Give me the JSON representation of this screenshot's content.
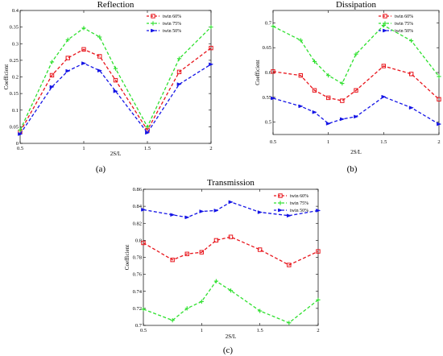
{
  "colors": {
    "red": "#e8141b",
    "green": "#2fe02f",
    "blue": "#1414e6"
  },
  "chart_data": [
    {
      "id": "a",
      "type": "line",
      "title": "Reflection",
      "panel_label": "(a)",
      "xlabel": "2S/L",
      "ylabel": "Coefficient",
      "xlim": [
        0.5,
        2
      ],
      "ylim": [
        0,
        0.4
      ],
      "xticks": [
        "0.5",
        "1",
        "1.5",
        "2"
      ],
      "yticks": [
        "0",
        "0.05",
        "0.1",
        "0.15",
        "0.2",
        "0.25",
        "0.3",
        "0.35",
        "0.4"
      ],
      "legend_position": "top-right",
      "x": [
        0.5,
        0.75,
        0.875,
        1.0,
        1.125,
        1.25,
        1.5,
        1.75,
        2.0
      ],
      "series": [
        {
          "name": "twin 60%",
          "marker": "square",
          "values": [
            0.035,
            0.205,
            0.257,
            0.283,
            0.262,
            0.19,
            0.04,
            0.215,
            0.287
          ]
        },
        {
          "name": "twin 75%",
          "marker": "plus",
          "values": [
            0.04,
            0.245,
            0.312,
            0.347,
            0.32,
            0.225,
            0.05,
            0.255,
            0.35
          ]
        },
        {
          "name": "twin 50%",
          "marker": "triangle",
          "values": [
            0.028,
            0.17,
            0.218,
            0.241,
            0.219,
            0.157,
            0.032,
            0.178,
            0.238
          ]
        }
      ]
    },
    {
      "id": "b",
      "type": "line",
      "title": "Dissipation",
      "panel_label": "(b)",
      "xlabel": "2S/L",
      "ylabel": "Coefficient",
      "xlim": [
        0.5,
        2
      ],
      "ylim": [
        0.475,
        0.725
      ],
      "xticks": [
        "0.5",
        "1",
        "1.5",
        "2"
      ],
      "yticks": [
        "0.5",
        "0.55",
        "0.6",
        "0.65",
        "0.7"
      ],
      "legend_position": "top-right",
      "x": [
        0.5,
        0.75,
        0.875,
        1.0,
        1.125,
        1.25,
        1.5,
        1.75,
        2.0
      ],
      "series": [
        {
          "name": "twin 60%",
          "marker": "square",
          "values": [
            0.602,
            0.594,
            0.564,
            0.549,
            0.543,
            0.564,
            0.613,
            0.597,
            0.546
          ]
        },
        {
          "name": "twin 75%",
          "marker": "plus",
          "values": [
            0.693,
            0.665,
            0.622,
            0.594,
            0.578,
            0.637,
            0.695,
            0.664,
            0.592
          ]
        },
        {
          "name": "twin 50%",
          "marker": "triangle",
          "values": [
            0.548,
            0.532,
            0.52,
            0.497,
            0.506,
            0.511,
            0.551,
            0.529,
            0.496
          ]
        }
      ]
    },
    {
      "id": "c",
      "type": "line",
      "title": "Transmission",
      "panel_label": "(c)",
      "xlabel": "2S/L",
      "ylabel": "Coefficient",
      "xlim": [
        0.5,
        2
      ],
      "ylim": [
        0.7,
        0.86
      ],
      "xticks": [
        "0.5",
        "1",
        "1.5",
        "2"
      ],
      "yticks": [
        "0.7",
        "0.72",
        "0.74",
        "0.76",
        "0.78",
        "0.8",
        "0.82",
        "0.84",
        "0.86"
      ],
      "legend_position": "top-right",
      "x": [
        0.5,
        0.75,
        0.875,
        1.0,
        1.125,
        1.25,
        1.5,
        1.75,
        2.0
      ],
      "series": [
        {
          "name": "twin 60%",
          "marker": "square",
          "values": [
            0.797,
            0.777,
            0.784,
            0.786,
            0.8,
            0.804,
            0.789,
            0.771,
            0.787
          ]
        },
        {
          "name": "twin 75%",
          "marker": "plus",
          "values": [
            0.719,
            0.706,
            0.72,
            0.728,
            0.752,
            0.741,
            0.717,
            0.703,
            0.73
          ]
        },
        {
          "name": "twin 50%",
          "marker": "triangle",
          "values": [
            0.836,
            0.83,
            0.827,
            0.834,
            0.835,
            0.845,
            0.833,
            0.829,
            0.835
          ]
        }
      ]
    }
  ]
}
